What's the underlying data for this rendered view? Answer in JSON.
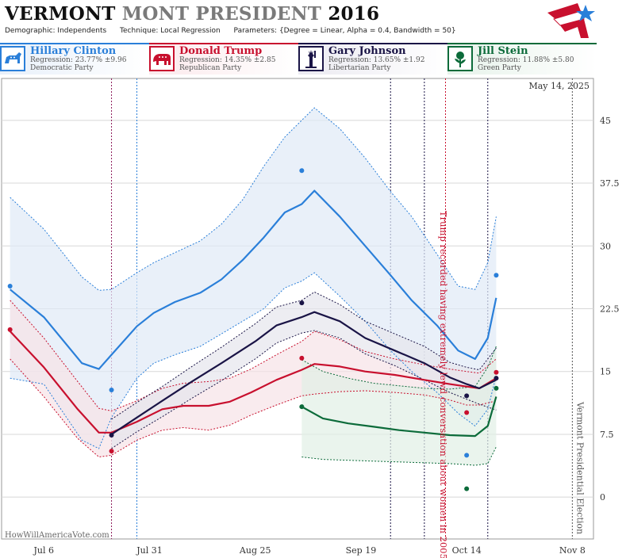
{
  "header": {
    "title_state": "VERMONT",
    "title_sub": "MONT PRESIDENT",
    "title_year": "2016",
    "demographic": "Demographic: Independents",
    "technique": "Technique: Local Regression",
    "parameters": "Parameters: {Degree = Linear, Alpha = 0.4, Bandwidth = 50}"
  },
  "candidates": [
    {
      "name": "Hillary Clinton",
      "regression": "Regression: 23.77% ±9.96",
      "party": "Democratic Party",
      "color": "#2a7fd9",
      "icon": "donkey-icon"
    },
    {
      "name": "Donald Trump",
      "regression": "Regression: 14.35% ±2.85",
      "party": "Republican Party",
      "color": "#c8102e",
      "icon": "elephant-icon"
    },
    {
      "name": "Gary Johnson",
      "regression": "Regression: 13.65% ±1.92",
      "party": "Libertarian Party",
      "color": "#1a1446",
      "icon": "liberty-icon"
    },
    {
      "name": "Jill Stein",
      "regression": "Regression: 11.88% ±5.80",
      "party": "Green Party",
      "color": "#0c6b3a",
      "icon": "rose-icon"
    }
  ],
  "chart_data": {
    "type": "line",
    "date_label": "May 14, 2025",
    "footer": "HowWillAmericaVote.com",
    "ylim": [
      -5,
      50
    ],
    "y_ticks": [
      0,
      7.5,
      15,
      22.5,
      30,
      37.5,
      45
    ],
    "y_tick_labels": [
      "0",
      "7.5",
      "15",
      "22.5",
      "30",
      "37.5",
      "45"
    ],
    "x_ticks": [
      "2016-07-06",
      "2016-07-31",
      "2016-08-25",
      "2016-09-19",
      "2016-10-14",
      "2016-11-08"
    ],
    "x_tick_labels": [
      "Jul 6",
      "Jul 31",
      "Aug 25",
      "Sep 19",
      "Oct 14",
      "Nov 8"
    ],
    "xlim": [
      "2016-06-26",
      "2016-11-13"
    ],
    "annotations": [
      {
        "date": "2016-10-07",
        "text": "Trump recorded having extremely lewd conversation about women in 2005",
        "color": "#c8102e"
      },
      {
        "date": "2016-11-08",
        "text": "Vermont Presidential Election",
        "color": "#555555"
      }
    ],
    "event_lines": [
      {
        "date": "2016-07-22",
        "color": "#8b1a5a"
      },
      {
        "date": "2016-07-28",
        "color": "#2a7fd9"
      },
      {
        "date": "2016-09-26",
        "color": "#1a1446"
      },
      {
        "date": "2016-10-04",
        "color": "#1a1446"
      },
      {
        "date": "2016-10-09",
        "color": "#c8102e"
      },
      {
        "date": "2016-10-19",
        "color": "#1a1446"
      },
      {
        "date": "2016-11-08",
        "color": "#555555"
      }
    ],
    "series": [
      {
        "name": "Hillary Clinton",
        "color": "#2a7fd9",
        "band_fill": "#dfe9f6",
        "x": [
          "2016-06-28",
          "2016-07-06",
          "2016-07-15",
          "2016-07-19",
          "2016-07-22",
          "2016-07-28",
          "2016-08-01",
          "2016-08-06",
          "2016-08-12",
          "2016-08-17",
          "2016-08-22",
          "2016-08-27",
          "2016-09-01",
          "2016-09-05",
          "2016-09-08",
          "2016-09-14",
          "2016-09-20",
          "2016-09-26",
          "2016-10-01",
          "2016-10-07",
          "2016-10-12",
          "2016-10-16",
          "2016-10-19",
          "2016-10-21"
        ],
        "y": [
          24.8,
          21.5,
          16.0,
          15.3,
          17.0,
          20.4,
          22.0,
          23.3,
          24.4,
          26.0,
          28.3,
          31.0,
          34.0,
          35.0,
          36.6,
          33.5,
          30.0,
          26.5,
          23.5,
          20.5,
          17.5,
          16.5,
          19.0,
          23.8
        ],
        "upper": [
          35.8,
          32.0,
          26.3,
          24.7,
          24.8,
          26.8,
          28.0,
          29.2,
          30.6,
          32.6,
          35.5,
          39.5,
          43.0,
          45.0,
          46.5,
          44.0,
          40.5,
          36.5,
          33.5,
          29.0,
          25.2,
          24.8,
          28.0,
          33.5
        ],
        "lower": [
          14.2,
          13.5,
          6.8,
          5.8,
          9.5,
          14.2,
          16.0,
          17.0,
          18.0,
          19.5,
          21.0,
          22.5,
          25.0,
          25.8,
          26.8,
          24.0,
          21.0,
          17.5,
          15.0,
          12.5,
          10.0,
          8.5,
          10.5,
          14.5
        ],
        "points": [
          [
            "2016-06-28",
            25.2
          ],
          [
            "2016-07-22",
            12.8
          ],
          [
            "2016-09-05",
            39.0
          ],
          [
            "2016-10-14",
            5.0
          ],
          [
            "2016-10-21",
            26.5
          ]
        ]
      },
      {
        "name": "Donald Trump",
        "color": "#c8102e",
        "band_fill": "#f6e3e7",
        "x": [
          "2016-06-28",
          "2016-07-06",
          "2016-07-14",
          "2016-07-19",
          "2016-07-22",
          "2016-07-28",
          "2016-08-03",
          "2016-08-08",
          "2016-08-14",
          "2016-08-19",
          "2016-08-24",
          "2016-08-30",
          "2016-09-05",
          "2016-09-08",
          "2016-09-14",
          "2016-09-20",
          "2016-09-27",
          "2016-10-04",
          "2016-10-10",
          "2016-10-14",
          "2016-10-17",
          "2016-10-21"
        ],
        "y": [
          19.8,
          15.5,
          10.5,
          7.7,
          7.7,
          9.0,
          10.5,
          10.9,
          10.9,
          11.4,
          12.5,
          14.0,
          15.2,
          15.9,
          15.6,
          15.0,
          14.6,
          14.0,
          13.5,
          13.2,
          13.0,
          14.2
        ],
        "upper": [
          23.5,
          19.0,
          13.8,
          10.6,
          10.3,
          11.5,
          13.0,
          13.6,
          13.8,
          14.2,
          15.3,
          17.0,
          18.6,
          19.8,
          18.8,
          17.4,
          16.5,
          15.8,
          15.3,
          15.0,
          14.8,
          16.5
        ],
        "lower": [
          16.5,
          12.0,
          7.0,
          4.8,
          5.0,
          6.8,
          8.0,
          8.3,
          8.0,
          8.6,
          9.8,
          11.0,
          12.1,
          12.3,
          12.6,
          12.7,
          12.5,
          12.2,
          11.6,
          11.0,
          11.0,
          11.5
        ],
        "points": [
          [
            "2016-06-28",
            20.0
          ],
          [
            "2016-07-22",
            5.5
          ],
          [
            "2016-09-05",
            16.6
          ],
          [
            "2016-10-14",
            10.1
          ],
          [
            "2016-10-21",
            14.9
          ]
        ]
      },
      {
        "name": "Gary Johnson",
        "color": "#1a1446",
        "band_fill": "#e6e5ec",
        "x": [
          "2016-07-22",
          "2016-07-28",
          "2016-08-03",
          "2016-08-10",
          "2016-08-17",
          "2016-08-25",
          "2016-08-30",
          "2016-09-05",
          "2016-09-08",
          "2016-09-14",
          "2016-09-20",
          "2016-09-27",
          "2016-10-04",
          "2016-10-10",
          "2016-10-14",
          "2016-10-17",
          "2016-10-21"
        ],
        "y": [
          7.5,
          9.5,
          11.5,
          13.8,
          16.0,
          18.6,
          20.5,
          21.5,
          22.1,
          21.0,
          19.0,
          17.5,
          16.0,
          14.3,
          13.5,
          13.0,
          14.0
        ],
        "upper": [
          9.3,
          11.3,
          13.2,
          15.6,
          17.9,
          20.7,
          22.7,
          23.5,
          24.5,
          23.0,
          21.0,
          19.5,
          18.0,
          16.1,
          15.5,
          15.2,
          17.8
        ],
        "lower": [
          5.8,
          7.8,
          9.6,
          11.8,
          13.9,
          16.5,
          18.4,
          19.6,
          19.9,
          19.0,
          17.1,
          15.7,
          14.0,
          12.5,
          11.7,
          11.1,
          10.4
        ],
        "points": [
          [
            "2016-07-22",
            7.4
          ],
          [
            "2016-09-05",
            23.2
          ],
          [
            "2016-10-14",
            12.1
          ],
          [
            "2016-10-21",
            14.2
          ]
        ]
      },
      {
        "name": "Jill Stein",
        "color": "#0c6b3a",
        "band_fill": "#e1efe6",
        "x": [
          "2016-09-05",
          "2016-09-10",
          "2016-09-16",
          "2016-09-22",
          "2016-09-28",
          "2016-10-04",
          "2016-10-10",
          "2016-10-16",
          "2016-10-19",
          "2016-10-21"
        ],
        "y": [
          10.8,
          9.4,
          8.8,
          8.4,
          8.0,
          7.7,
          7.4,
          7.3,
          8.5,
          12.0
        ],
        "upper": [
          16.4,
          15.0,
          14.2,
          13.6,
          13.3,
          13.0,
          12.9,
          13.2,
          15.5,
          18.0
        ],
        "lower": [
          4.8,
          4.5,
          4.4,
          4.3,
          4.2,
          4.1,
          4.0,
          3.8,
          4.0,
          6.0
        ],
        "points": [
          [
            "2016-09-05",
            10.8
          ],
          [
            "2016-10-14",
            1.0
          ],
          [
            "2016-10-21",
            13.0
          ]
        ]
      }
    ]
  }
}
